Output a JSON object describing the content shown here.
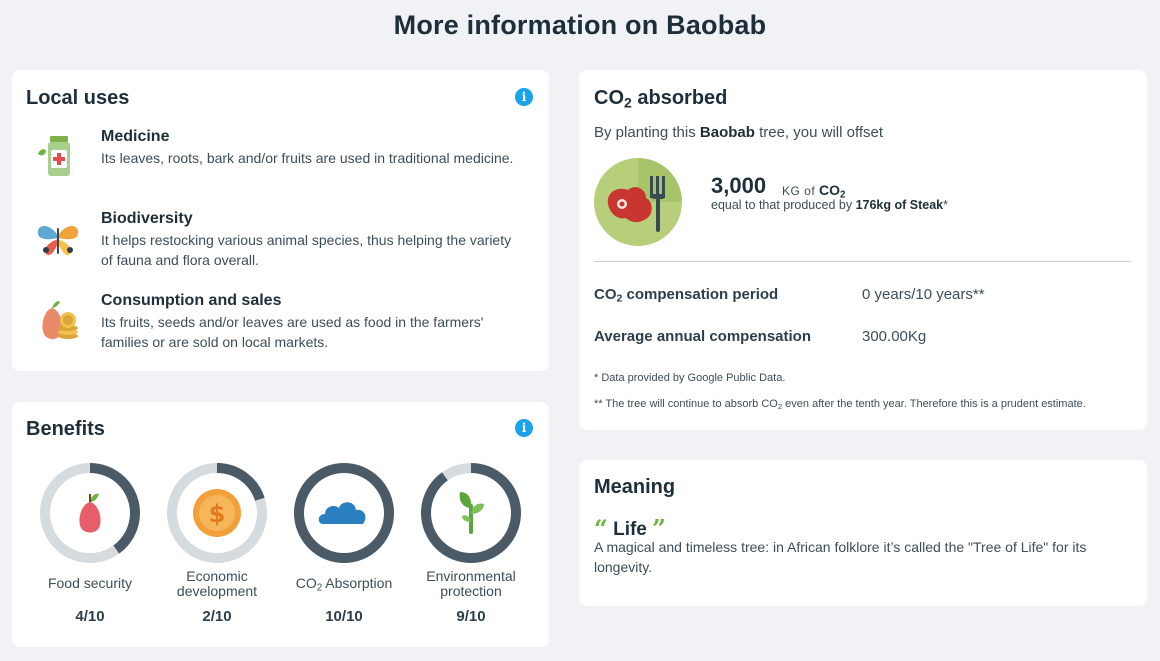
{
  "page_title": "More information on Baobab",
  "local_uses": {
    "title": "Local uses",
    "items": [
      {
        "title": "Medicine",
        "description": "Its leaves, roots, bark and/or fruits are used in traditional medicine.",
        "icon": "medicine-bottle-icon"
      },
      {
        "title": "Biodiversity",
        "description": "It helps restocking various animal species, thus helping the variety of fauna and flora overall.",
        "icon": "butterfly-icon"
      },
      {
        "title": "Consumption and sales",
        "description": "Its fruits, seeds and/or leaves are used as food in the farmers' families or are sold on local markets.",
        "icon": "fruit-coins-icon"
      }
    ]
  },
  "benefits": {
    "title": "Benefits",
    "items": [
      {
        "label": "Food security",
        "score": "4/10",
        "value": 4,
        "icon": "pear-icon"
      },
      {
        "label": "Economic development",
        "score": "2/10",
        "value": 2,
        "icon": "dollar-coin-icon"
      },
      {
        "label": "CO2 Absorption",
        "label_main": "CO",
        "label_sub": "2",
        "label_rest": " Absorption",
        "score": "10/10",
        "value": 10,
        "icon": "cloud-icon"
      },
      {
        "label": "Environmental protection",
        "score": "9/10",
        "value": 9,
        "icon": "sprout-icon"
      }
    ],
    "colors": {
      "ring_fill": "#4a5a66",
      "ring_track": "#d6dbe0"
    }
  },
  "co2": {
    "title_main": "CO",
    "title_sub": "2",
    "title_rest": " absorbed",
    "subtitle_prefix": "By planting this ",
    "subtitle_bold": "Baobab",
    "subtitle_suffix": " tree, you will offset",
    "amount": "3,000",
    "unit_prefix": "KG of ",
    "unit_main": "CO",
    "unit_sub": "2",
    "equal_prefix": "equal to that produced by ",
    "equal_bold": "176kg of Steak",
    "equal_suffix": "*",
    "rows": [
      {
        "label_main": "CO",
        "label_sub": "2",
        "label_rest": " compensation period",
        "value": "0 years/10 years**"
      },
      {
        "label_main": "Average annual compensation",
        "label_sub": "",
        "label_rest": "",
        "value": "300.00Kg"
      }
    ],
    "footnote1": "* Data provided by Google Public Data.",
    "footnote2_a": "** The tree will continue to absorb CO",
    "footnote2_sub": "2",
    "footnote2_b": " even after the tenth year. Therefore this is a prudent estimate.",
    "icon": "steak-icon"
  },
  "meaning": {
    "title": "Meaning",
    "quote_open": "“",
    "word": "Life",
    "quote_close": "”",
    "description": "A magical and timeless tree: in African folklore it’s called the \"Tree of Life\" for its longevity."
  },
  "colors": {
    "info": "#1aa3e8",
    "accent_green": "#6cb33f",
    "background": "#f0f2f5"
  }
}
